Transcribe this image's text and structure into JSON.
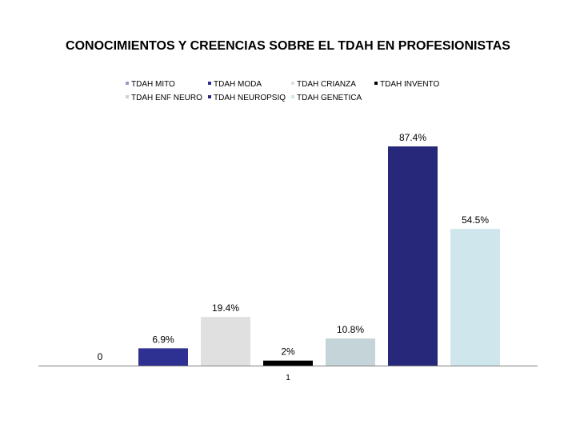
{
  "chart_data": {
    "type": "bar",
    "title": "CONOCIMIENTOS Y CREENCIAS SOBRE EL TDAH EN PROFESIONISTAS",
    "xlabel": "",
    "ylabel": "",
    "categories": [
      "1"
    ],
    "ylim": [
      0,
      100
    ],
    "grid": false,
    "legend_position": "top",
    "series": [
      {
        "name": "TDAH MITO",
        "value": 0,
        "label": "0",
        "color": "#9999cc"
      },
      {
        "name": "TDAH MODA",
        "value": 6.9,
        "label": "6.9%",
        "color": "#2e3192"
      },
      {
        "name": "TDAH  CRIANZA",
        "value": 19.4,
        "label": "19.4%",
        "color": "#e0e0e0"
      },
      {
        "name": "TDAH INVENTO",
        "value": 2,
        "label": "2%",
        "color": "#000000"
      },
      {
        "name": "TDAH ENF NEURO",
        "value": 10.8,
        "label": "10.8%",
        "color": "#c5d4d8"
      },
      {
        "name": "TDAH NEUROPSIQ",
        "value": 87.4,
        "label": "87.4%",
        "color": "#28287a"
      },
      {
        "name": "TDAH GENETICA",
        "value": 54.5,
        "label": "54.5%",
        "color": "#cfe7ec"
      }
    ]
  }
}
